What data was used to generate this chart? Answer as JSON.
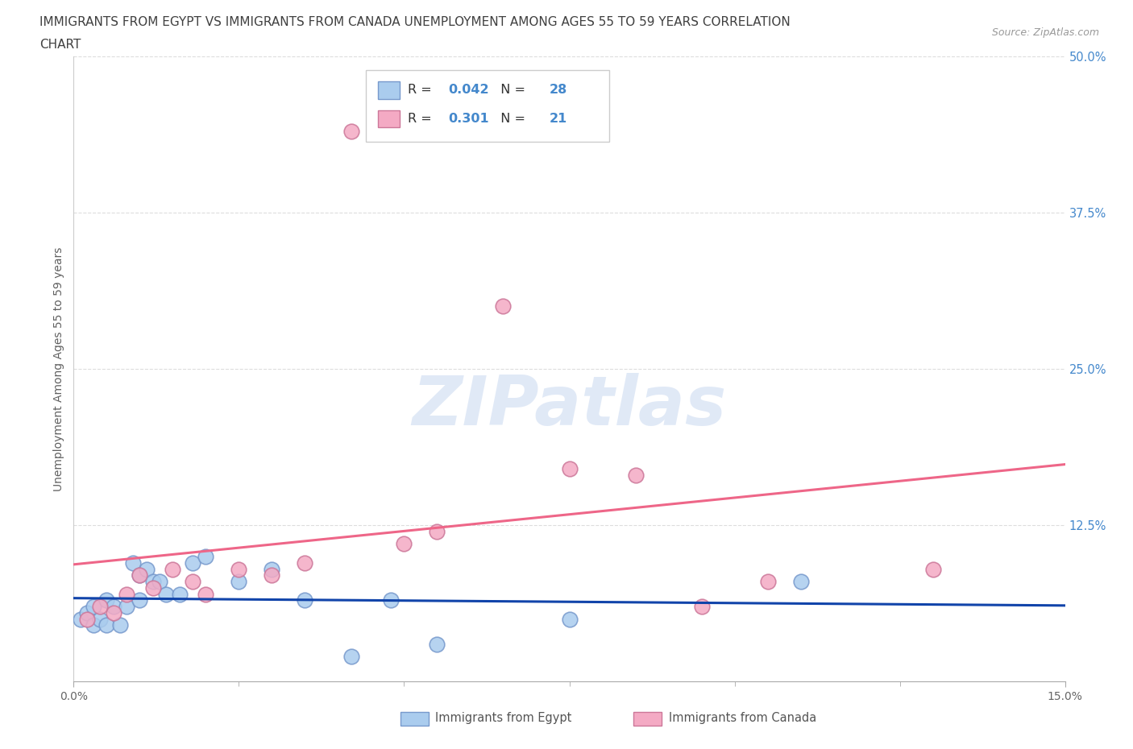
{
  "title_line1": "IMMIGRANTS FROM EGYPT VS IMMIGRANTS FROM CANADA UNEMPLOYMENT AMONG AGES 55 TO 59 YEARS CORRELATION",
  "title_line2": "CHART",
  "source_text": "Source: ZipAtlas.com",
  "ylabel": "Unemployment Among Ages 55 to 59 years",
  "xlim": [
    0.0,
    0.15
  ],
  "ylim": [
    0.0,
    0.5
  ],
  "yticks": [
    0.0,
    0.125,
    0.25,
    0.375,
    0.5
  ],
  "ytick_labels": [
    "",
    "12.5%",
    "25.0%",
    "37.5%",
    "50.0%"
  ],
  "egypt_color": "#aaccee",
  "egypt_edge_color": "#7799cc",
  "canada_color": "#f4aac4",
  "canada_edge_color": "#cc7799",
  "egypt_line_color": "#1144aa",
  "canada_line_color": "#ee6688",
  "egypt_label": "Immigrants from Egypt",
  "canada_label": "Immigrants from Canada",
  "egypt_R": "0.042",
  "egypt_N": "28",
  "canada_R": "0.301",
  "canada_N": "21",
  "watermark": "ZIPatlas",
  "watermark_color": "#c8d8f0",
  "background_color": "#ffffff",
  "grid_color": "#dddddd",
  "title_color": "#404040",
  "axis_label_color": "#606060",
  "tick_color_right": "#4488cc",
  "legend_text_color": "#333333",
  "egypt_x": [
    0.001,
    0.002,
    0.003,
    0.003,
    0.004,
    0.005,
    0.005,
    0.006,
    0.007,
    0.008,
    0.009,
    0.01,
    0.01,
    0.011,
    0.012,
    0.013,
    0.014,
    0.016,
    0.018,
    0.02,
    0.025,
    0.03,
    0.035,
    0.042,
    0.048,
    0.055,
    0.075,
    0.11
  ],
  "egypt_y": [
    0.05,
    0.055,
    0.045,
    0.06,
    0.05,
    0.065,
    0.045,
    0.06,
    0.045,
    0.06,
    0.095,
    0.065,
    0.085,
    0.09,
    0.08,
    0.08,
    0.07,
    0.07,
    0.095,
    0.1,
    0.08,
    0.09,
    0.065,
    0.02,
    0.065,
    0.03,
    0.05,
    0.08
  ],
  "canada_x": [
    0.002,
    0.004,
    0.006,
    0.008,
    0.01,
    0.012,
    0.015,
    0.018,
    0.02,
    0.025,
    0.03,
    0.035,
    0.042,
    0.05,
    0.055,
    0.065,
    0.075,
    0.085,
    0.095,
    0.105,
    0.13
  ],
  "canada_y": [
    0.05,
    0.06,
    0.055,
    0.07,
    0.085,
    0.075,
    0.09,
    0.08,
    0.07,
    0.09,
    0.085,
    0.095,
    0.44,
    0.11,
    0.12,
    0.3,
    0.17,
    0.165,
    0.06,
    0.08,
    0.09
  ]
}
